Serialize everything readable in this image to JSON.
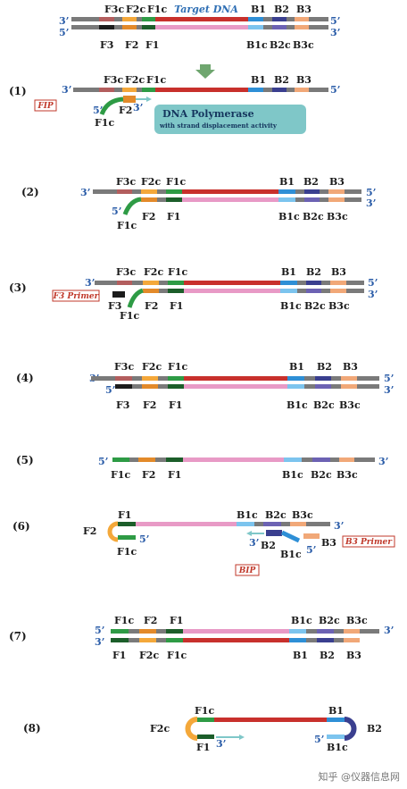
{
  "colors": {
    "gray": "#7a7a7a",
    "red": "#c8302c",
    "pink": "#e89ac6",
    "green": "#2e9b45",
    "darkgreen": "#1c5e2a",
    "orange": "#f4a83a",
    "darkorange": "#e38a2a",
    "brown": "#b35e5e",
    "black": "#1c1c1c",
    "blue": "#2e8fd6",
    "lightblue": "#7cc4ee",
    "navy": "#3a3f8f",
    "purple": "#6c62b3",
    "salmon": "#f1a878",
    "teal": "#7fc7c8",
    "endlabel": "#2a5ca8"
  },
  "title": "Target DNA",
  "polymerase": {
    "title": "DNA Polymerase",
    "subtitle": "with strand displacement activity"
  },
  "primers": {
    "fip": "FIP",
    "f3": "F3 Primer",
    "b3": "B3 Primer",
    "bip": "BIP"
  },
  "steps": [
    "(1)",
    "(2)",
    "(3)",
    "(4)",
    "(5)",
    "(6)",
    "(7)",
    "(8)"
  ],
  "ends": {
    "three": "3’",
    "five": "5’"
  },
  "regions": {
    "F3": "F3",
    "F2": "F2",
    "F1": "F1",
    "F3c": "F3c",
    "F2c": "F2c",
    "F1c": "F1c",
    "B1": "B1",
    "B2": "B2",
    "B3": "B3",
    "B1c": "B1c",
    "B2c": "B2c",
    "B3c": "B3c"
  },
  "watermark": "知乎 @仪器信息网"
}
